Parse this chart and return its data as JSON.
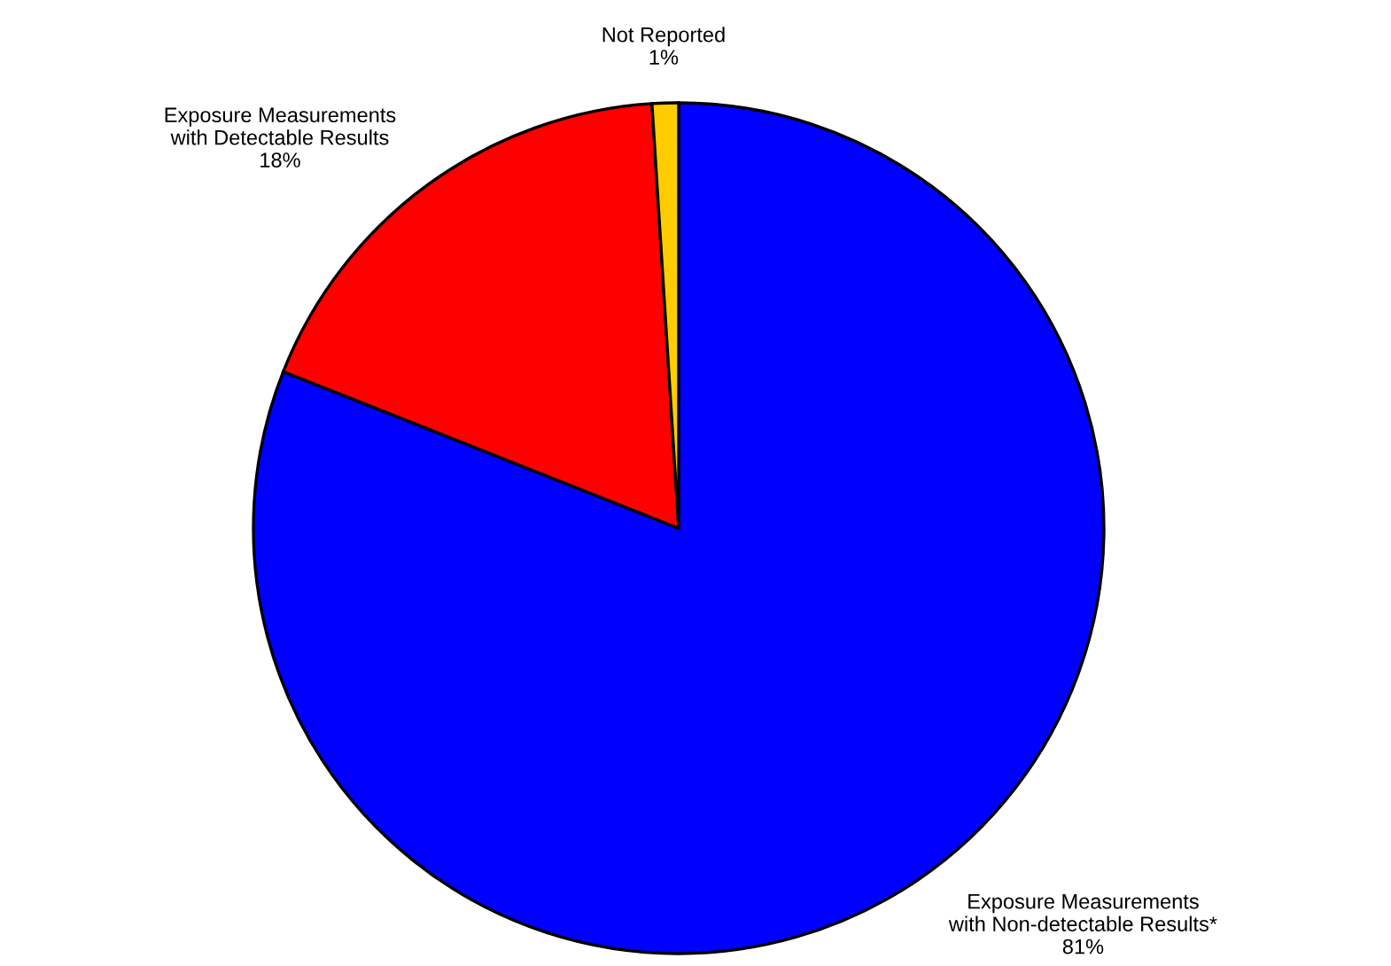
{
  "chart_data": {
    "type": "pie",
    "categories": [
      "Exposure Measurements\nwith Non-detectable Results*",
      "Exposure Measurements\nwith Detectable Results",
      "Not Reported"
    ],
    "values": [
      81,
      18,
      1
    ],
    "colors": [
      "#0000ff",
      "#ff0000",
      "#ffcc00"
    ],
    "value_labels": [
      "81%",
      "18%",
      "1%"
    ],
    "legend": false
  }
}
